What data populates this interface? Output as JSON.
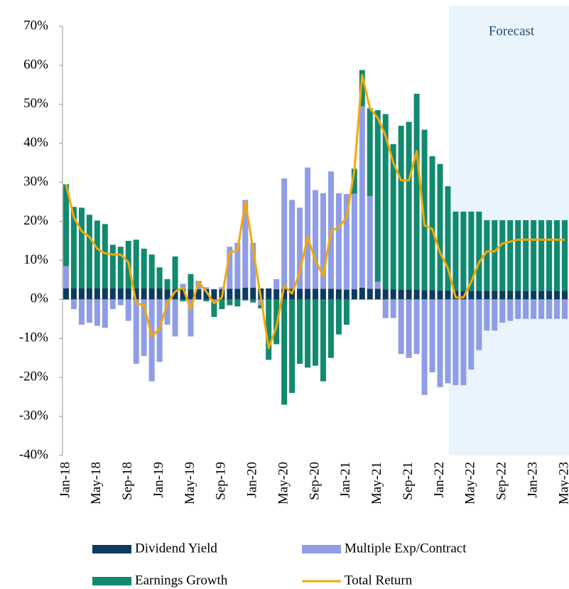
{
  "chart_data": {
    "type": "stacked_bar_line",
    "annotation": "Forecast",
    "categories": [
      "Jan-18",
      null,
      null,
      null,
      "May-18",
      null,
      null,
      null,
      "Sep-18",
      null,
      null,
      null,
      "Jan-19",
      null,
      null,
      null,
      "May-19",
      null,
      null,
      null,
      "Sep-19",
      null,
      null,
      null,
      "Jan-20",
      null,
      null,
      null,
      "May-20",
      null,
      null,
      null,
      "Sep-20",
      null,
      null,
      null,
      "Jan-21",
      null,
      null,
      null,
      "May-21",
      null,
      null,
      null,
      "Sep-21",
      null,
      null,
      null,
      "Jan-22",
      null,
      null,
      null,
      "May-22",
      null,
      null,
      null,
      "Sep-22",
      null,
      null,
      null,
      "Jan-23",
      null,
      null,
      null,
      "May-23"
    ],
    "ylim": [
      -40,
      70
    ],
    "yticks": [
      {
        "value": -40,
        "label": "-40%"
      },
      {
        "value": -30,
        "label": "-30%"
      },
      {
        "value": -20,
        "label": "-20%"
      },
      {
        "value": -10,
        "label": "-10%"
      },
      {
        "value": 0,
        "label": "0%"
      },
      {
        "value": 10,
        "label": "10%"
      },
      {
        "value": 20,
        "label": "20%"
      },
      {
        "value": 30,
        "label": "30%"
      },
      {
        "value": 40,
        "label": "40%"
      },
      {
        "value": 50,
        "label": "50%"
      },
      {
        "value": 60,
        "label": "60%"
      },
      {
        "value": 70,
        "label": "70%"
      }
    ],
    "series": [
      {
        "name": "Dividend Yield",
        "color": "#0d3b5e",
        "kind": "bar",
        "values": [
          2.8,
          2.8,
          2.8,
          2.8,
          2.8,
          2.8,
          2.8,
          2.8,
          2.8,
          2.8,
          2.8,
          2.8,
          2.8,
          2.6,
          2.6,
          2.6,
          2.6,
          2.6,
          2.6,
          2.6,
          2.6,
          2.7,
          2.7,
          3.0,
          3.0,
          2.8,
          2.8,
          2.6,
          2.7,
          2.7,
          2.7,
          2.7,
          2.7,
          2.7,
          2.7,
          2.6,
          2.5,
          2.6,
          3.0,
          2.7,
          2.7,
          2.6,
          2.6,
          2.5,
          2.5,
          2.5,
          2.4,
          2.4,
          2.3,
          2.3,
          2.2,
          2.2,
          2.2,
          2.2,
          2.2,
          2.2,
          2.2,
          2.2,
          2.2,
          2.2,
          2.2,
          2.2,
          2.2,
          2.2,
          2.2
        ]
      },
      {
        "name": "Multiple Exp/Contract",
        "color": "#8f9de6",
        "kind": "bar",
        "values": [
          5.7,
          -2.5,
          -6.5,
          -6,
          -6.8,
          -7.3,
          -2.5,
          -1.5,
          -5.5,
          -16.5,
          -14.5,
          -21,
          -16,
          -6.5,
          -9.5,
          1.4,
          -9.5,
          1.9,
          0.5,
          -0.5,
          0.5,
          10.8,
          11.8,
          22.5,
          11.5,
          -1.5,
          0,
          2.6,
          28.3,
          22.8,
          20.8,
          31.1,
          25.3,
          24.5,
          30.1,
          24.6,
          24.5,
          24.5,
          46.5,
          23.8,
          1.8,
          -4.8,
          -4.8,
          -14,
          -15,
          -14,
          -24.5,
          -18.7,
          -22.5,
          -21.5,
          -22,
          -22,
          -18,
          -13,
          -8,
          -8,
          -6,
          -5.5,
          -5,
          -5,
          -5,
          -5,
          -5,
          -5,
          -5
        ]
      },
      {
        "name": "Earnings Growth",
        "color": "#118a6f",
        "kind": "bar",
        "values": [
          21,
          20.9,
          20.7,
          18.9,
          17.4,
          16.5,
          11.2,
          10.7,
          12.2,
          12.5,
          10.2,
          8.7,
          5.4,
          2.6,
          8.4,
          -0.5,
          3.9,
          0.2,
          -0.5,
          -4,
          -2.5,
          -1.5,
          -1.8,
          -0.3,
          -0.8,
          -0.8,
          -15.5,
          -11.5,
          -27,
          -24,
          -16.5,
          -17.5,
          -17,
          -21,
          -15,
          -9,
          -6.5,
          6.4,
          9.3,
          22.5,
          44,
          44.9,
          37.2,
          42,
          43,
          50.2,
          41.1,
          34.3,
          32.4,
          26.7,
          20.3,
          20.3,
          20.3,
          20.3,
          18.1,
          18.1,
          18.1,
          18.1,
          18.1,
          18.1,
          18.1,
          18.1,
          18.1,
          18.1,
          18.1
        ]
      },
      {
        "name": "Total Return",
        "color": "#f5a800",
        "kind": "line",
        "values": [
          29.5,
          21,
          17.5,
          16,
          13,
          11.8,
          11.5,
          11.5,
          9.5,
          -1,
          -1.5,
          -9.5,
          -7.5,
          -1,
          2,
          3,
          -2.5,
          4.5,
          2,
          -1,
          0.5,
          12,
          12.5,
          25,
          13,
          0.5,
          -12.5,
          -7,
          3.5,
          1.5,
          7,
          16,
          10,
          6,
          17.5,
          18.5,
          21,
          33,
          57.5,
          49,
          46.5,
          42,
          35,
          30.5,
          30.5,
          38,
          19,
          18,
          12,
          8,
          0.5,
          0.5,
          4.5,
          9.5,
          12.3,
          12.3,
          14.3,
          14.8,
          15.3,
          15.3,
          15.3,
          15.3,
          15.3,
          15.3,
          15.3
        ]
      }
    ]
  }
}
